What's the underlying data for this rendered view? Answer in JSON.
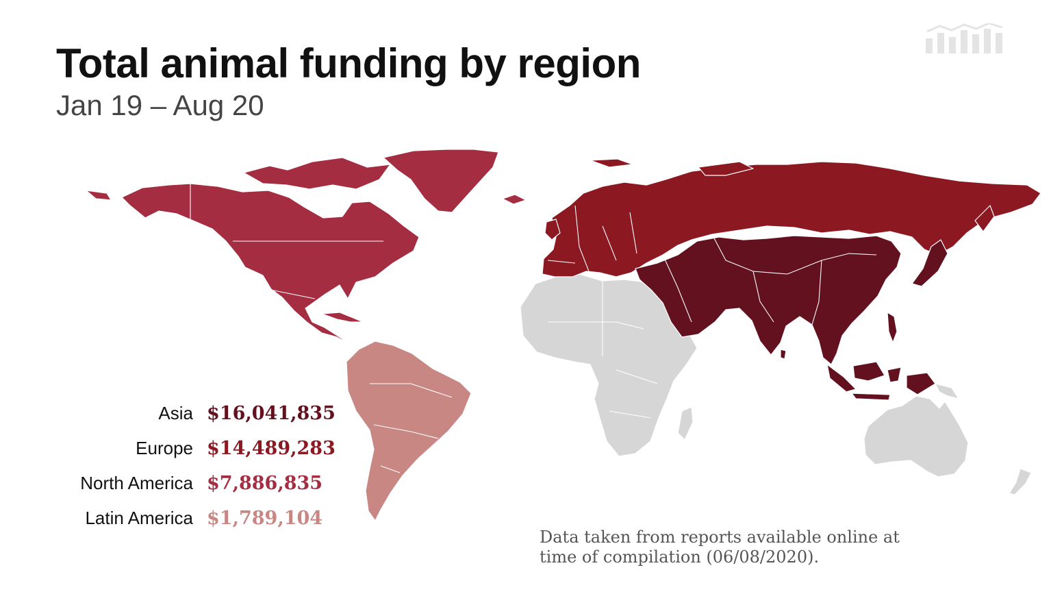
{
  "header": {
    "title": "Total animal funding by region",
    "subtitle": "Jan 19 – Aug 20"
  },
  "logo": {
    "icon": "bar-chart-logo-icon"
  },
  "map": {
    "regions": [
      {
        "id": "asia",
        "label": "Asia",
        "value": "$16,041,835",
        "color": "#63111f",
        "funded": true
      },
      {
        "id": "europe",
        "label": "Europe",
        "value": "$14,489,283",
        "color": "#8c1822",
        "funded": true
      },
      {
        "id": "north-america",
        "label": "North America",
        "value": "$7,886,835",
        "color": "#a52d42",
        "funded": true
      },
      {
        "id": "latin-america",
        "label": "Latin America",
        "value": "$1,789,104",
        "color": "#c98783",
        "funded": true
      },
      {
        "id": "africa",
        "color": "#d6d6d6",
        "funded": false
      },
      {
        "id": "oceania",
        "color": "#d6d6d6",
        "funded": false
      }
    ]
  },
  "legend": [
    {
      "name": "Asia",
      "value": "$16,041,835",
      "color": "#63111f"
    },
    {
      "name": "Europe",
      "value": "$14,489,283",
      "color": "#8c1822"
    },
    {
      "name": "North America",
      "value": "$7,886,835",
      "color": "#a52d42"
    },
    {
      "name": "Latin America",
      "value": "$1,789,104",
      "color": "#c98783"
    }
  ],
  "footnote": "Data taken from reports available online at time of compilation (06/08/2020)."
}
